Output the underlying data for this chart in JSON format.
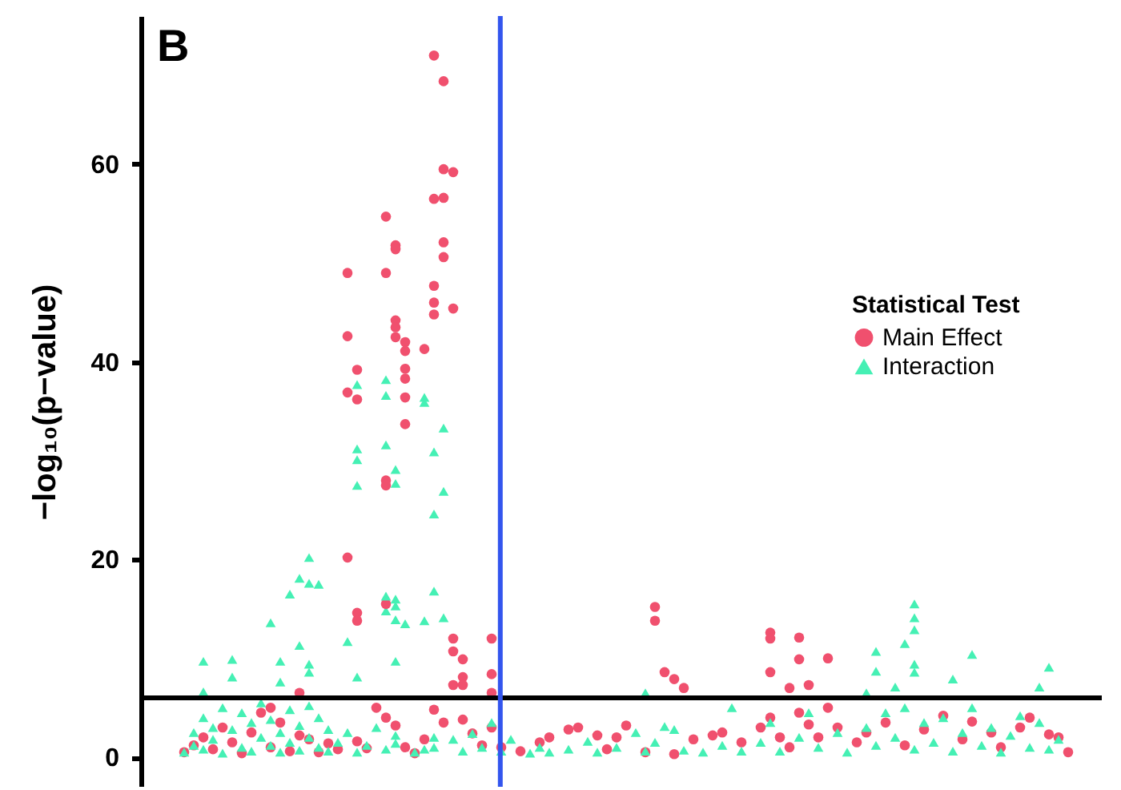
{
  "chart_data": {
    "type": "scatter",
    "ylabel": "−log₁₀(p−value)",
    "legend_title": "Statistical Test",
    "annotations": [
      "B"
    ],
    "categories": [
      null,
      null,
      null,
      null,
      null,
      null,
      null,
      null,
      null,
      null,
      null,
      null,
      null,
      null,
      null,
      null,
      null,
      null,
      null,
      null,
      null,
      null,
      null,
      null,
      null,
      null,
      null,
      null,
      null,
      null,
      null,
      null,
      null,
      null,
      null,
      null,
      null,
      null,
      null,
      null,
      null,
      null,
      null,
      null,
      null,
      null,
      null,
      null,
      null,
      null,
      null,
      null,
      null,
      null,
      null,
      null,
      null,
      null,
      null,
      null,
      null,
      null,
      null,
      null,
      null,
      null,
      null,
      null,
      null,
      null,
      null,
      null,
      null,
      null,
      null,
      null,
      null,
      null,
      null,
      null,
      null,
      null,
      null,
      null,
      null,
      null,
      null,
      null,
      null,
      null,
      null,
      null,
      null,
      null,
      null,
      null,
      null,
      null,
      null,
      null
    ],
    "ylim": [
      -3,
      75
    ],
    "yticks": [
      0,
      20,
      40,
      60
    ],
    "tick_labels": "y",
    "legend": "right",
    "ref_lines": [
      {
        "axis": "y",
        "value": 6.0,
        "color": "#000000"
      }
    ],
    "series": [
      {
        "name": "Main Effect",
        "color": "#f0506e",
        "marker": "circle",
        "values": [
          null,
          null,
          null,
          null,
          0.5,
          1.2,
          2.0,
          0.8,
          3.0,
          1.5,
          0.4,
          2.5,
          4.5,
          1.0,
          3.5,
          0.6,
          2.2,
          1.8,
          0.5,
          1.4,
          0.8,
          49.0,
          39.2,
          0.9,
          5.0,
          49.0,
          51.8,
          42.0,
          0.4,
          41.3,
          71.0,
          68.4,
          59.2,
          9.9,
          2.4,
          1.2,
          12.0,
          1.0,
          null,
          0.6,
          null,
          1.5,
          2.0,
          null,
          2.8,
          3.0,
          null,
          2.2,
          0.8,
          2.0,
          3.2,
          null,
          0.5,
          15.2,
          8.6,
          7.9,
          7.0,
          1.8,
          null,
          2.2,
          2.5,
          null,
          1.5,
          null,
          3.0,
          12.6,
          2.0,
          7.0,
          12.1,
          7.3,
          2.0,
          10.0,
          3.0,
          null,
          1.5,
          2.5,
          null,
          3.5,
          null,
          1.2,
          null,
          2.8,
          null,
          4.2,
          null,
          1.8,
          3.6,
          null,
          2.5,
          1.0,
          null,
          3.0,
          4.0,
          null,
          2.3,
          2.0,
          0.5,
          null,
          null,
          null
        ]
      },
      {
        "color": "#f0506e",
        "marker": "circle",
        "values": [
          null,
          null,
          null,
          null,
          null,
          null,
          null,
          null,
          null,
          null,
          null,
          null,
          null,
          5.0,
          null,
          null,
          6.5,
          null,
          null,
          null,
          null,
          42.6,
          36.2,
          null,
          null,
          28.0,
          51.4,
          41.1,
          null,
          1.8,
          46.0,
          59.5,
          null,
          8.1,
          null,
          null,
          8.4,
          null,
          null,
          null,
          null,
          null,
          null,
          null,
          null,
          null,
          null,
          null,
          null,
          null,
          null,
          null,
          null,
          13.8,
          null,
          0.3,
          null,
          null,
          null,
          null,
          null,
          null,
          null,
          null,
          null,
          12.0,
          null,
          1.0,
          9.9,
          3.3,
          null,
          5.0,
          null,
          null,
          null,
          null,
          null,
          null,
          null,
          null,
          null,
          null,
          null,
          null,
          null,
          null,
          null,
          null,
          null,
          null,
          null,
          null,
          null,
          null,
          null,
          null,
          null,
          null,
          null,
          null
        ]
      },
      {
        "color": "#f0506e",
        "marker": "circle",
        "values": [
          null,
          null,
          null,
          null,
          null,
          null,
          null,
          null,
          null,
          null,
          null,
          null,
          null,
          null,
          null,
          null,
          null,
          null,
          null,
          null,
          null,
          20.2,
          14.6,
          null,
          null,
          27.5,
          44.2,
          39.3,
          null,
          null,
          47.7,
          56.6,
          45.4,
          7.3,
          null,
          null,
          6.5,
          null,
          null,
          null,
          null,
          null,
          null,
          null,
          null,
          null,
          null,
          null,
          null,
          null,
          null,
          null,
          null,
          null,
          null,
          null,
          null,
          null,
          null,
          null,
          null,
          null,
          null,
          null,
          null,
          8.6,
          null,
          null,
          4.5,
          null,
          null,
          null,
          null,
          null,
          null,
          null,
          null,
          null,
          null,
          null,
          null,
          null,
          null,
          null,
          null,
          null,
          null,
          null,
          null,
          null,
          null,
          null,
          null,
          null,
          null,
          null,
          null,
          null,
          null,
          null
        ]
      },
      {
        "color": "#f0506e",
        "marker": "circle",
        "values": [
          null,
          null,
          null,
          null,
          null,
          null,
          null,
          null,
          null,
          null,
          null,
          null,
          null,
          null,
          null,
          null,
          null,
          null,
          null,
          null,
          null,
          36.9,
          13.8,
          null,
          null,
          15.5,
          43.5,
          38.3,
          null,
          null,
          56.5,
          52.1,
          12.0,
          3.8,
          null,
          null,
          3.0,
          null,
          null,
          null,
          null,
          null,
          null,
          null,
          null,
          null,
          null,
          null,
          null,
          null,
          null,
          null,
          null,
          null,
          null,
          null,
          null,
          null,
          null,
          null,
          null,
          null,
          null,
          null,
          null,
          4.0,
          null,
          null,
          null,
          null,
          null,
          null,
          null,
          null,
          null,
          null,
          null,
          null,
          null,
          null,
          null,
          null,
          null,
          null,
          null,
          null,
          null,
          null,
          null,
          null,
          null,
          null,
          null,
          null,
          null,
          null,
          null,
          null,
          null,
          null
        ]
      },
      {
        "color": "#f0506e",
        "marker": "circle",
        "values": [
          null,
          null,
          null,
          null,
          null,
          null,
          null,
          null,
          null,
          null,
          null,
          null,
          null,
          null,
          null,
          null,
          null,
          null,
          null,
          null,
          null,
          null,
          1.6,
          null,
          null,
          54.7,
          42.5,
          36.4,
          null,
          null,
          44.8,
          50.6,
          10.7,
          null,
          null,
          null,
          null,
          null,
          null,
          null,
          null,
          null,
          null,
          null,
          null,
          null,
          null,
          null,
          null,
          null,
          null,
          null,
          null,
          null,
          null,
          null,
          null,
          null,
          null,
          null,
          null,
          null,
          null,
          null,
          null,
          null,
          null,
          null,
          null,
          null,
          null,
          null,
          null,
          null,
          null,
          null,
          null,
          null,
          null,
          null,
          null,
          null,
          null,
          null,
          null,
          null,
          null,
          null,
          null,
          null,
          null,
          null,
          null,
          null,
          null,
          null,
          null,
          null,
          null,
          null
        ]
      },
      {
        "color": "#f0506e",
        "marker": "circle",
        "values": [
          null,
          null,
          null,
          null,
          null,
          null,
          null,
          null,
          null,
          null,
          null,
          null,
          null,
          null,
          null,
          null,
          null,
          null,
          null,
          null,
          null,
          null,
          null,
          null,
          null,
          4.0,
          3.2,
          33.7,
          null,
          null,
          4.8,
          3.5,
          7.3,
          null,
          null,
          null,
          null,
          null,
          null,
          null,
          null,
          null,
          null,
          null,
          null,
          null,
          null,
          null,
          null,
          null,
          null,
          null,
          null,
          null,
          null,
          null,
          null,
          null,
          null,
          null,
          null,
          null,
          null,
          null,
          null,
          null,
          null,
          null,
          null,
          null,
          null,
          null,
          null,
          null,
          null,
          null,
          null,
          null,
          null,
          null,
          null,
          null,
          null,
          null,
          null,
          null,
          null,
          null,
          null,
          null,
          null,
          null,
          null,
          null,
          null,
          null,
          null,
          null,
          null,
          null
        ]
      },
      {
        "color": "#f0506e",
        "marker": "circle",
        "values": [
          null,
          null,
          null,
          null,
          null,
          null,
          null,
          null,
          null,
          null,
          null,
          null,
          null,
          null,
          null,
          null,
          null,
          null,
          null,
          null,
          null,
          null,
          null,
          null,
          null,
          null,
          null,
          1.0,
          null,
          null,
          null,
          null,
          null,
          null,
          null,
          null,
          null,
          null,
          null,
          null,
          null,
          null,
          null,
          null,
          null,
          null,
          null,
          null,
          null,
          null,
          null,
          null,
          null,
          null,
          null,
          null,
          null,
          null,
          null,
          null,
          null,
          null,
          null,
          null,
          null,
          null,
          null,
          null,
          null,
          null,
          null,
          null,
          null,
          null,
          null,
          null,
          null,
          null,
          null,
          null,
          null,
          null,
          null,
          null,
          null,
          null,
          null,
          null,
          null,
          null,
          null,
          null,
          null,
          null,
          null,
          null,
          null,
          null,
          null,
          null
        ]
      },
      {
        "name": "Interaction",
        "color": "#45f0b4",
        "marker": "triangle",
        "values": [
          null,
          null,
          null,
          null,
          0.5,
          2.5,
          4.0,
          3.0,
          5.0,
          2.8,
          4.5,
          3.5,
          2.0,
          1.2,
          0.5,
          4.8,
          3.2,
          5.2,
          4.0,
          2.8,
          1.5,
          2.5,
          37.7,
          1.2,
          3.0,
          31.6,
          29.1,
          13.5,
          0.5,
          0.8,
          30.9,
          33.3,
          1.8,
          0.6,
          2.4,
          1.0,
          3.5,
          0.6,
          1.8,
          null,
          0.4,
          1.0,
          0.5,
          null,
          0.8,
          null,
          1.6,
          0.5,
          null,
          1.0,
          null,
          2.5,
          0.6,
          1.5,
          3.1,
          2.8,
          0.7,
          null,
          0.5,
          null,
          1.2,
          5.0,
          0.6,
          null,
          1.5,
          3.5,
          0.6,
          null,
          2.0,
          4.5,
          1.0,
          null,
          2.5,
          0.5,
          null,
          3.0,
          1.2,
          4.5,
          2.0,
          5.0,
          0.8,
          3.5,
          1.5,
          4.0,
          0.6,
          2.5,
          5.0,
          1.2,
          3.0,
          0.5,
          2.2,
          4.2,
          1.0,
          3.5,
          0.8,
          1.8,
          null,
          null,
          null,
          null
        ]
      },
      {
        "color": "#45f0b4",
        "marker": "triangle",
        "values": [
          null,
          null,
          null,
          null,
          null,
          1.2,
          0.8,
          1.8,
          0.4,
          8.1,
          1.0,
          0.6,
          5.5,
          3.8,
          2.5,
          1.5,
          0.7,
          2.0,
          1.0,
          0.6,
          null,
          11.7,
          31.2,
          null,
          null,
          16.3,
          27.7,
          null,
          null,
          36.4,
          24.6,
          26.9,
          null,
          null,
          null,
          null,
          null,
          null,
          null,
          null,
          null,
          null,
          null,
          null,
          null,
          null,
          null,
          null,
          null,
          null,
          null,
          null,
          6.5,
          null,
          null,
          null,
          null,
          null,
          null,
          null,
          null,
          null,
          null,
          null,
          null,
          null,
          null,
          null,
          null,
          null,
          null,
          null,
          null,
          null,
          null,
          6.5,
          10.7,
          null,
          7.1,
          11.5,
          15.5,
          null,
          null,
          null,
          7.9,
          null,
          10.4,
          null,
          null,
          null,
          null,
          null,
          null,
          7.1,
          9.1,
          null,
          null,
          null,
          null,
          null
        ]
      },
      {
        "color": "#45f0b4",
        "marker": "triangle",
        "values": [
          null,
          null,
          null,
          null,
          null,
          null,
          9.7,
          null,
          null,
          9.9,
          null,
          null,
          null,
          13.6,
          9.7,
          16.5,
          18.1,
          17.6,
          17.5,
          null,
          null,
          null,
          30.1,
          null,
          null,
          0.8,
          16.0,
          null,
          null,
          35.9,
          16.8,
          14.1,
          null,
          null,
          null,
          null,
          null,
          null,
          null,
          null,
          null,
          null,
          null,
          null,
          null,
          null,
          null,
          null,
          null,
          null,
          null,
          null,
          null,
          null,
          null,
          null,
          null,
          null,
          null,
          null,
          null,
          null,
          null,
          null,
          null,
          null,
          null,
          null,
          null,
          null,
          null,
          null,
          null,
          null,
          null,
          null,
          8.7,
          null,
          null,
          null,
          14.1,
          null,
          null,
          null,
          null,
          null,
          null,
          null,
          null,
          null,
          null,
          null,
          null,
          null,
          null,
          null,
          null,
          null,
          null,
          null
        ]
      },
      {
        "color": "#45f0b4",
        "marker": "triangle",
        "values": [
          null,
          null,
          null,
          null,
          null,
          null,
          6.6,
          null,
          null,
          null,
          null,
          null,
          null,
          null,
          7.6,
          null,
          11.3,
          20.2,
          null,
          null,
          null,
          null,
          27.5,
          null,
          null,
          38.2,
          15.3,
          null,
          null,
          13.8,
          2.0,
          null,
          null,
          null,
          null,
          null,
          null,
          null,
          null,
          null,
          null,
          null,
          null,
          null,
          null,
          null,
          null,
          null,
          null,
          null,
          null,
          null,
          null,
          null,
          null,
          null,
          null,
          null,
          null,
          null,
          null,
          null,
          null,
          null,
          null,
          null,
          null,
          null,
          null,
          null,
          null,
          null,
          null,
          null,
          null,
          null,
          null,
          null,
          null,
          null,
          12.9,
          null,
          null,
          null,
          null,
          null,
          null,
          null,
          null,
          null,
          null,
          null,
          null,
          null,
          null,
          null,
          null,
          null,
          null,
          null
        ]
      },
      {
        "color": "#45f0b4",
        "marker": "triangle",
        "values": [
          null,
          null,
          null,
          null,
          null,
          null,
          null,
          null,
          null,
          null,
          null,
          null,
          null,
          null,
          null,
          null,
          null,
          9.4,
          null,
          null,
          null,
          null,
          0.5,
          null,
          null,
          36.6,
          13.9,
          null,
          null,
          null,
          1.0,
          null,
          null,
          null,
          null,
          null,
          null,
          null,
          null,
          null,
          null,
          null,
          null,
          null,
          null,
          null,
          null,
          null,
          null,
          null,
          null,
          null,
          null,
          null,
          null,
          null,
          null,
          null,
          null,
          null,
          null,
          null,
          null,
          null,
          null,
          null,
          null,
          null,
          null,
          null,
          null,
          null,
          null,
          null,
          null,
          null,
          null,
          null,
          null,
          null,
          9.4,
          null,
          null,
          null,
          null,
          null,
          null,
          null,
          null,
          null,
          null,
          null,
          null,
          null,
          null,
          null,
          null,
          null,
          null,
          null
        ]
      },
      {
        "color": "#45f0b4",
        "marker": "triangle",
        "values": [
          null,
          null,
          null,
          null,
          null,
          null,
          null,
          null,
          null,
          null,
          null,
          null,
          null,
          null,
          null,
          null,
          null,
          8.6,
          null,
          null,
          null,
          null,
          8.1,
          null,
          null,
          14.8,
          9.7,
          null,
          null,
          null,
          null,
          null,
          null,
          null,
          null,
          null,
          null,
          null,
          null,
          null,
          null,
          null,
          null,
          null,
          null,
          null,
          null,
          null,
          null,
          null,
          null,
          null,
          null,
          null,
          null,
          null,
          null,
          null,
          null,
          null,
          null,
          null,
          null,
          null,
          null,
          null,
          null,
          null,
          null,
          null,
          null,
          null,
          null,
          null,
          null,
          null,
          null,
          null,
          null,
          null,
          8.6,
          null,
          null,
          null,
          null,
          null,
          null,
          null,
          null,
          null,
          null,
          null,
          null,
          null,
          null,
          null,
          null,
          null,
          null,
          null
        ]
      },
      {
        "color": "#45f0b4",
        "marker": "triangle",
        "values": [
          null,
          null,
          null,
          null,
          null,
          null,
          null,
          null,
          null,
          null,
          null,
          null,
          null,
          null,
          null,
          null,
          null,
          null,
          null,
          null,
          null,
          null,
          null,
          null,
          null,
          null,
          2.2,
          null,
          null,
          null,
          null,
          null,
          null,
          null,
          null,
          null,
          null,
          null,
          null,
          null,
          null,
          null,
          null,
          null,
          null,
          null,
          null,
          null,
          null,
          null,
          null,
          null,
          null,
          null,
          null,
          null,
          null,
          null,
          null,
          null,
          null,
          null,
          null,
          null,
          null,
          null,
          null,
          null,
          null,
          null,
          null,
          null,
          null,
          null,
          null,
          null,
          null,
          null,
          null,
          null,
          null,
          null,
          null,
          null,
          null,
          null,
          null,
          null,
          null,
          null,
          null,
          null,
          null,
          null,
          null,
          null,
          null,
          null,
          null,
          null
        ]
      },
      {
        "color": "#45f0b4",
        "marker": "triangle",
        "values": [
          null,
          null,
          null,
          null,
          null,
          null,
          null,
          null,
          null,
          null,
          null,
          null,
          null,
          null,
          null,
          null,
          null,
          null,
          null,
          null,
          null,
          null,
          null,
          null,
          null,
          null,
          1.4,
          null,
          null,
          null,
          null,
          null,
          null,
          null,
          null,
          null,
          null,
          null,
          null,
          null,
          null,
          null,
          null,
          null,
          null,
          null,
          null,
          null,
          null,
          null,
          null,
          null,
          null,
          null,
          null,
          null,
          null,
          null,
          null,
          null,
          null,
          null,
          null,
          null,
          null,
          null,
          null,
          null,
          null,
          null,
          null,
          null,
          null,
          null,
          null,
          null,
          null,
          null,
          null,
          null,
          null,
          null,
          null,
          null,
          null,
          null,
          null,
          null,
          null,
          null,
          null,
          null,
          null,
          null,
          null,
          null,
          null,
          null,
          null,
          null
        ]
      }
    ]
  }
}
